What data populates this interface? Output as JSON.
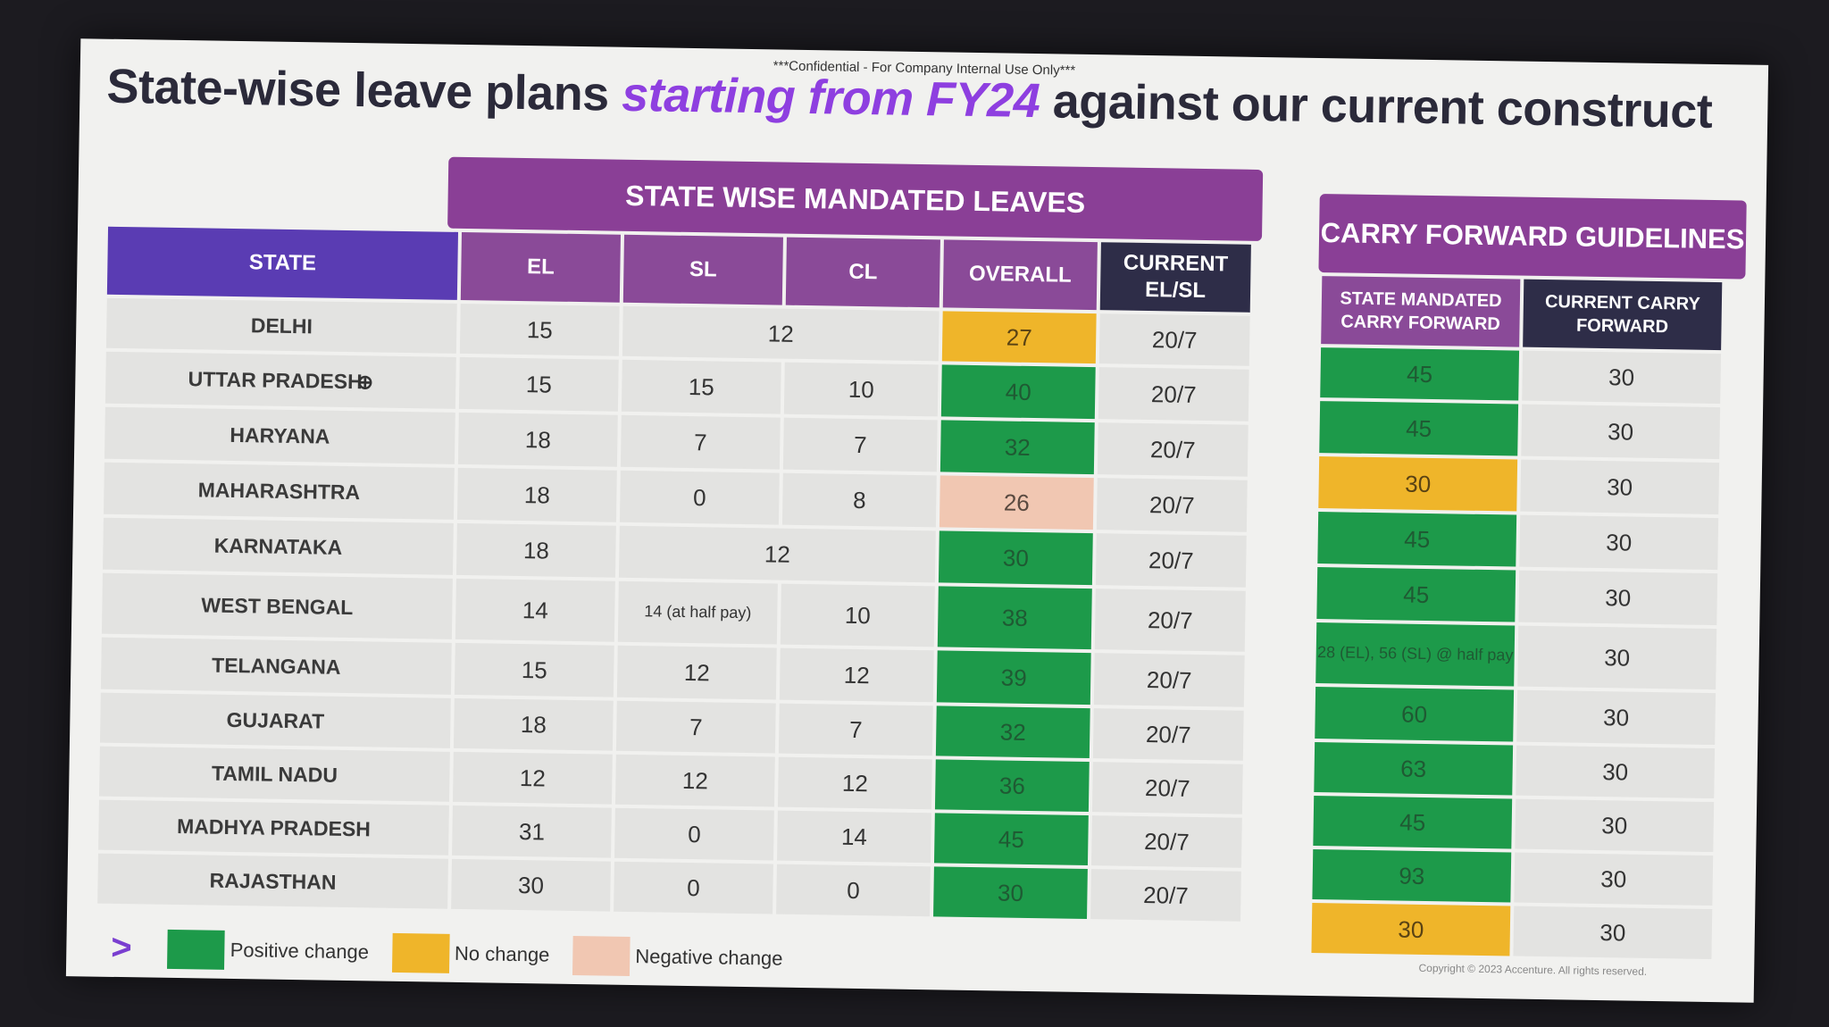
{
  "confidential": "***Confidential - For Company Internal Use Only***",
  "title": {
    "part1": "State-wise leave plans ",
    "highlight": "starting from FY24",
    "part2": " against our current construct"
  },
  "mandated_header": "STATE WISE MANDATED LEAVES",
  "carry_header": "CARRY FORWARD GUIDELINES",
  "columns": {
    "state": "STATE",
    "el": "EL",
    "sl": "SL",
    "cl": "CL",
    "overall": "OVERALL",
    "current": "CURRENT EL/SL",
    "state_mandated_cf": "STATE MANDATED CARRY FORWARD",
    "current_cf": "CURRENT CARRY FORWARD"
  },
  "rows": [
    {
      "state": "DELHI",
      "el": "15",
      "sl_cl": "12",
      "overall": "27",
      "current": "20/7",
      "mandated_cf": "45",
      "current_cf": "30"
    },
    {
      "state": "UTTAR PRADESH",
      "el": "15",
      "sl": "15",
      "cl": "10",
      "overall": "40",
      "current": "20/7",
      "mandated_cf": "45",
      "current_cf": "30"
    },
    {
      "state": "HARYANA",
      "el": "18",
      "sl": "7",
      "cl": "7",
      "overall": "32",
      "current": "20/7",
      "mandated_cf": "30",
      "current_cf": "30"
    },
    {
      "state": "MAHARASHTRA",
      "el": "18",
      "sl": "0",
      "cl": "8",
      "overall": "26",
      "current": "20/7",
      "mandated_cf": "45",
      "current_cf": "30"
    },
    {
      "state": "KARNATAKA",
      "el": "18",
      "sl_cl": "12",
      "overall": "30",
      "current": "20/7",
      "mandated_cf": "45",
      "current_cf": "30"
    },
    {
      "state": "WEST BENGAL",
      "el": "14",
      "sl": "14 (at half pay)",
      "cl": "10",
      "overall": "38",
      "current": "20/7",
      "mandated_cf": "28 (EL), 56 (SL) @ half pay",
      "current_cf": "30"
    },
    {
      "state": "TELANGANA",
      "el": "15",
      "sl": "12",
      "cl": "12",
      "overall": "39",
      "current": "20/7",
      "mandated_cf": "60",
      "current_cf": "30"
    },
    {
      "state": "GUJARAT",
      "el": "18",
      "sl": "7",
      "cl": "7",
      "overall": "32",
      "current": "20/7",
      "mandated_cf": "63",
      "current_cf": "30"
    },
    {
      "state": "TAMIL NADU",
      "el": "12",
      "sl": "12",
      "cl": "12",
      "overall": "36",
      "current": "20/7",
      "mandated_cf": "45",
      "current_cf": "30"
    },
    {
      "state": "MADHYA PRADESH",
      "el": "31",
      "sl": "0",
      "cl": "14",
      "overall": "45",
      "current": "20/7",
      "mandated_cf": "93",
      "current_cf": "30"
    },
    {
      "state": "RAJASTHAN",
      "el": "30",
      "sl": "0",
      "cl": "0",
      "overall": "30",
      "current": "20/7",
      "mandated_cf": "30",
      "current_cf": "30"
    }
  ],
  "legend": {
    "positive": "Positive change",
    "nochange": "No change",
    "negative": "Negative change"
  },
  "colors": {
    "positive": "#1d9a4a",
    "nochange": "#efb52a",
    "negative": "#f1c7b2",
    "purple": "#8a3f96",
    "state_header": "#5a3cb3",
    "dark_header": "#2e2d48"
  },
  "icons": {
    "nav_arrow": "chevron-right-icon",
    "cursor": "zoom-cursor-icon"
  },
  "copyright": "Copyright © 2023 Accenture. All rights reserved."
}
